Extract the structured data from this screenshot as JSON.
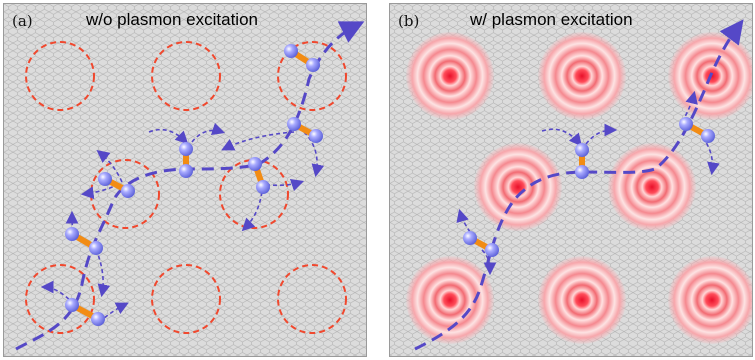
{
  "panels": [
    {
      "id": "a",
      "label": "(a)",
      "title": "w/o plasmon excitation"
    },
    {
      "id": "b",
      "label": "(b)",
      "title": "w/ plasmon excitation"
    }
  ],
  "colors": {
    "background": "#dcdcdc",
    "lattice": "#b3b3b3",
    "dashed_circle": "#f0482e",
    "plasmon_core": "#e8102a",
    "path": "#5548c7",
    "atom": "#7d80f0",
    "bond": "#f28c14"
  },
  "icons": {
    "molecule": "molecule-icon",
    "plasmon": "plasmon-hotspot-icon",
    "nanoparticle": "dashed-circle-icon"
  }
}
